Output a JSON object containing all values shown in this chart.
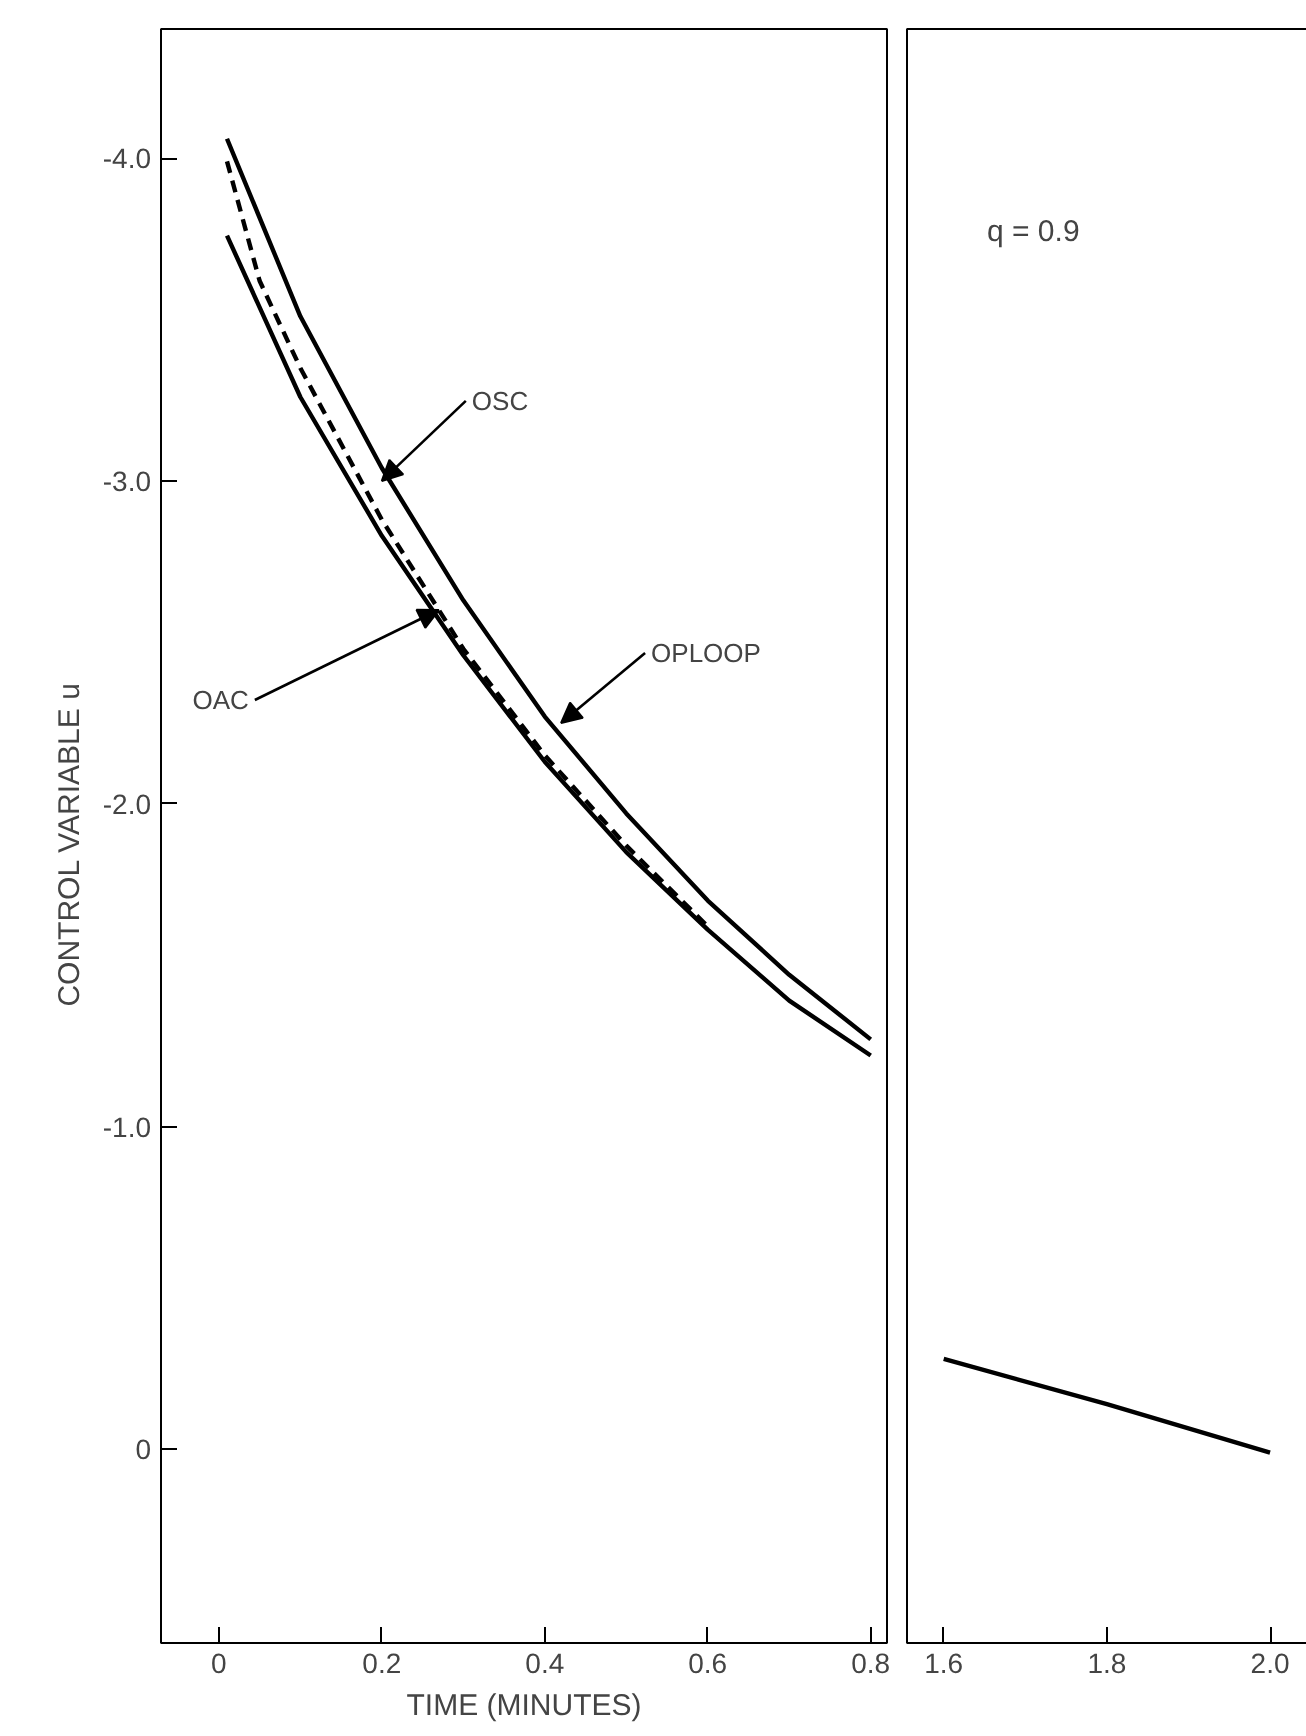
{
  "chart_data": [
    {
      "type": "line",
      "xlabel": "TIME (MINUTES)",
      "ylabel": "CONTROL  VARIABLE  u",
      "xlim": [
        -0.071,
        0.82
      ],
      "ylim": [
        0.6,
        -4.4
      ],
      "xticks": [
        0,
        0.2,
        0.4,
        0.6,
        {
          "value": 0.8,
          "label": "0.8"
        }
      ],
      "yticks": [
        {
          "value": -4.0,
          "label": "-4.0"
        },
        {
          "value": -3.0,
          "label": "-3.0"
        },
        {
          "value": -2.0,
          "label": "-2.0"
        },
        {
          "value": -1.0,
          "label": "-1.0"
        },
        0
      ],
      "grid": false,
      "marker": "none",
      "series": [
        {
          "color": "#000000",
          "line_style": "solid",
          "x": [
            0.01,
            0.1,
            0.2,
            0.3,
            0.4,
            0.5,
            0.6,
            0.7,
            0.8
          ],
          "values": [
            -4.06,
            -3.51,
            -3.04,
            -2.63,
            -2.27,
            -1.97,
            -1.7,
            -1.47,
            -1.27
          ]
        },
        {
          "color": "#000000",
          "line_style": "dashed",
          "x": [
            0.01,
            0.05,
            0.1,
            0.2,
            0.3,
            0.4,
            0.5,
            0.6
          ],
          "values": [
            -3.99,
            -3.62,
            -3.35,
            -2.88,
            -2.48,
            -2.15,
            -1.87,
            -1.62
          ]
        },
        {
          "color": "#000000",
          "line_style": "solid",
          "x": [
            0.01,
            0.1,
            0.2,
            0.3,
            0.4,
            0.5,
            0.6,
            0.7,
            0.8
          ],
          "values": [
            -3.76,
            -3.26,
            -2.83,
            -2.46,
            -2.13,
            -1.85,
            -1.61,
            -1.39,
            -1.22
          ]
        }
      ],
      "annotations": [
        {
          "text": "OSC",
          "x": 0.2,
          "y": -3.0
        },
        {
          "text": "OAC",
          "x": 0.27,
          "y": -2.6
        },
        {
          "text": "OPLOOP",
          "x": 0.42,
          "y": -2.25
        }
      ]
    },
    {
      "type": "line",
      "xlim": [
        1.555,
        2.06
      ],
      "ylim": [
        0.6,
        -4.4
      ],
      "xticks": [
        1.6,
        1.8,
        {
          "value": 2.0,
          "label": "2.0"
        }
      ],
      "tick_labels": "x",
      "grid": false,
      "marker": "none",
      "series": [
        {
          "color": "#000000",
          "line_style": "solid",
          "x": [
            1.6,
            1.8,
            2.0
          ],
          "values": [
            -0.28,
            -0.14,
            0.01
          ]
        }
      ],
      "annotations": [
        "q = 0.9"
      ]
    }
  ]
}
